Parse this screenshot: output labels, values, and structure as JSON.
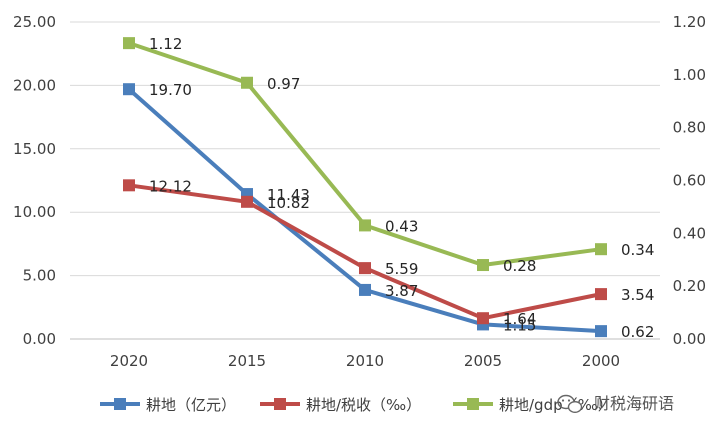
{
  "chart_data": {
    "type": "line",
    "title": "",
    "xlabel": "",
    "ylabel": "",
    "categories": [
      "2020",
      "2015",
      "2010",
      "2005",
      "2000"
    ],
    "y_left": {
      "range": [
        0,
        25
      ],
      "ticks": [
        "0.00",
        "5.00",
        "10.00",
        "15.00",
        "20.00",
        "25.00"
      ]
    },
    "y_right": {
      "range": [
        0,
        1.2
      ],
      "ticks": [
        "0.00",
        "0.20",
        "0.40",
        "0.60",
        "0.80",
        "1.00",
        "1.20"
      ]
    },
    "grid": true,
    "legend_position": "bottom",
    "series": [
      {
        "name": "耕地（亿元）",
        "axis": "left",
        "color": "#4a7ebb",
        "values": [
          19.7,
          11.43,
          3.87,
          1.15,
          0.62
        ],
        "labels": [
          "19.70",
          "11.43",
          "3.87",
          "1.15",
          "0.62"
        ]
      },
      {
        "name": "耕地/税收（‰）",
        "axis": "left",
        "color": "#be4b48",
        "values": [
          12.12,
          10.82,
          5.59,
          1.64,
          3.54
        ],
        "labels": [
          "12.12",
          "10.82",
          "5.59",
          "1.64",
          "3.54"
        ]
      },
      {
        "name": "耕地/gdp（‰）",
        "axis": "right",
        "color": "#98b954",
        "values": [
          1.12,
          0.97,
          0.43,
          0.28,
          0.34
        ],
        "labels": [
          "1.12",
          "0.97",
          "0.43",
          "0.28",
          "0.34"
        ]
      }
    ]
  },
  "watermark": "财税海研语"
}
